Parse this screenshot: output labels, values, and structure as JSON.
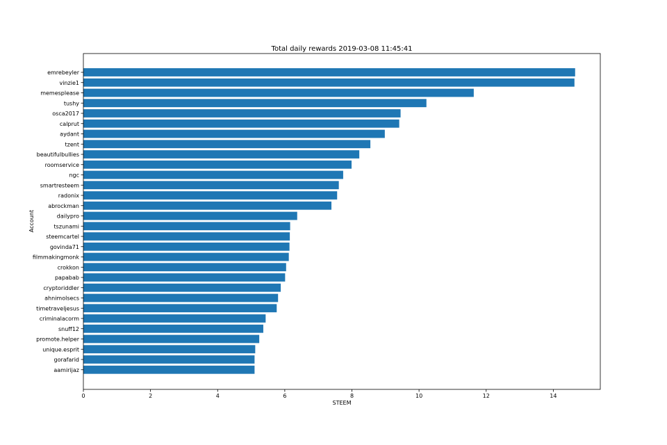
{
  "chart_data": {
    "type": "bar",
    "orientation": "horizontal",
    "title": "Total daily rewards 2019-03-08 11:45:41",
    "xlabel": "STEEM",
    "ylabel": "Account",
    "xlim": [
      0,
      15.4
    ],
    "xticks": [
      0,
      2,
      4,
      6,
      8,
      10,
      12,
      14
    ],
    "bar_color": "#1f77b4",
    "grid": false,
    "categories": [
      "emrebeyler",
      "vinzie1",
      "memesplease",
      "tushy",
      "osca2017",
      "calprut",
      "aydant",
      "tzent",
      "beautifulbullies",
      "roomservice",
      "ngc",
      "smartresteem",
      "radonix",
      "abrockman",
      "dailypro",
      "tszunami",
      "steemcartel",
      "govinda71",
      "filmmakingmonk",
      "crokkon",
      "papabab",
      "cryptoriddler",
      "ahnimolsecs",
      "timetraveljesus",
      "criminalacorm",
      "snuff12",
      "promote.helper",
      "unique.esprit",
      "gorafarid",
      "aamirijaz"
    ],
    "values": [
      14.65,
      14.63,
      11.63,
      10.22,
      9.45,
      9.41,
      8.98,
      8.55,
      8.22,
      7.99,
      7.74,
      7.61,
      7.56,
      7.39,
      6.37,
      6.16,
      6.15,
      6.14,
      6.12,
      6.04,
      6.01,
      5.88,
      5.8,
      5.76,
      5.43,
      5.36,
      5.24,
      5.12,
      5.1,
      5.1
    ]
  }
}
